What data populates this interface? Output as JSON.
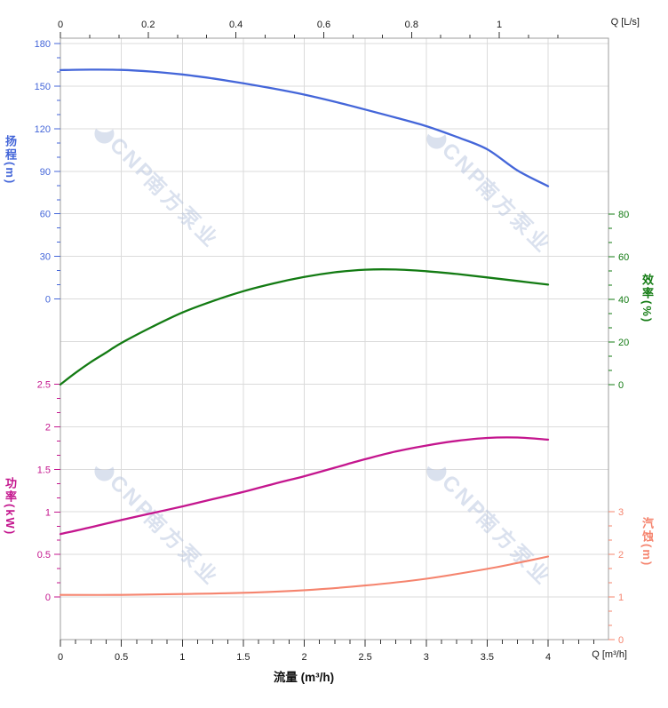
{
  "watermark": {
    "brand": "CNP",
    "name": "南方泵业",
    "color": "#b7c4df",
    "opacity": 0.5
  },
  "chart_data": {
    "type": "line",
    "title": "",
    "grid": true,
    "x_axis_bottom": {
      "title": "流量 (m³/h)",
      "corner_label": "Q [m³/h]",
      "unit": "m³/h",
      "ticks": [
        0,
        0.5,
        1,
        1.5,
        2,
        2.5,
        3,
        3.5,
        4
      ],
      "minor_step": 0.125,
      "range": [
        0,
        4.49
      ],
      "color": "#1a1a1a"
    },
    "x_axis_top": {
      "corner_label": "Q [L/s]",
      "unit": "L/s",
      "ticks": [
        0,
        0.2,
        0.4,
        0.6,
        0.8,
        1
      ],
      "minor_divisions": 3,
      "range": [
        0,
        1.247
      ],
      "color": "#1a1a1a"
    },
    "y_axes": [
      {
        "id": "head",
        "label": "扬程",
        "unit": "(m)",
        "color": "#4466d9",
        "ticks": [
          180,
          150,
          120,
          90,
          60,
          30,
          0
        ],
        "minor_step": 10,
        "range": [
          0,
          180
        ]
      },
      {
        "id": "power",
        "label": "功率",
        "unit": "(kW)",
        "color": "#c4168e",
        "ticks": [
          2.5,
          2,
          1.5,
          1,
          0.5,
          0
        ],
        "minor_divisions": 3,
        "range": [
          0,
          2.5
        ]
      },
      {
        "id": "efficiency",
        "label": "效率",
        "unit": "(%)",
        "color": "#137b13",
        "ticks": [
          80,
          60,
          40,
          20,
          0
        ],
        "minor_divisions": 3,
        "range": [
          0,
          80
        ]
      },
      {
        "id": "npsh",
        "label": "汽蚀",
        "unit": "(m)",
        "color": "#f5846e",
        "ticks": [
          3,
          2,
          1,
          0
        ],
        "minor_divisions": 3,
        "range": [
          0,
          3
        ]
      }
    ],
    "series": [
      {
        "name": "head-curve",
        "axis": "head",
        "color": "#4466d9",
        "width": 2.3,
        "x": [
          0,
          0.25,
          0.5,
          0.75,
          1,
          1.25,
          1.5,
          1.75,
          2,
          2.25,
          2.5,
          2.75,
          3,
          3.25,
          3.5,
          3.75,
          4
        ],
        "values": [
          161.3,
          161.6,
          161.4,
          160.2,
          158.2,
          155.4,
          152,
          148.2,
          144,
          139,
          133.5,
          127.8,
          121.8,
          114.2,
          105.5,
          90.5,
          79.5
        ]
      },
      {
        "name": "efficiency-curve",
        "axis": "efficiency",
        "color": "#137b13",
        "width": 2.3,
        "x": [
          0,
          0.125,
          0.25,
          0.375,
          0.5,
          0.75,
          1,
          1.25,
          1.5,
          1.75,
          2,
          2.25,
          2.5,
          2.75,
          3,
          3.25,
          3.5,
          3.75,
          4
        ],
        "values": [
          0,
          5.5,
          10.5,
          15,
          19.5,
          27,
          33.8,
          39.2,
          43.8,
          47.5,
          50.5,
          52.7,
          53.9,
          54.0,
          53.2,
          51.9,
          50.3,
          48.6,
          46.9
        ]
      },
      {
        "name": "power-curve",
        "axis": "power",
        "color": "#c4168e",
        "width": 2.3,
        "x": [
          0,
          0.25,
          0.5,
          0.75,
          1,
          1.25,
          1.5,
          1.75,
          2,
          2.25,
          2.5,
          2.75,
          3,
          3.25,
          3.5,
          3.75,
          4
        ],
        "values": [
          0.74,
          0.82,
          0.905,
          0.985,
          1.065,
          1.15,
          1.235,
          1.33,
          1.42,
          1.52,
          1.62,
          1.71,
          1.78,
          1.835,
          1.87,
          1.875,
          1.85
        ]
      },
      {
        "name": "npsh-curve",
        "axis": "npsh",
        "color": "#f5846e",
        "width": 2.1,
        "x": [
          0,
          0.5,
          1,
          1.5,
          2,
          2.5,
          3,
          3.5,
          3.75,
          4
        ],
        "values": [
          1.05,
          1.05,
          1.07,
          1.1,
          1.16,
          1.27,
          1.43,
          1.66,
          1.8,
          1.95
        ]
      }
    ]
  }
}
